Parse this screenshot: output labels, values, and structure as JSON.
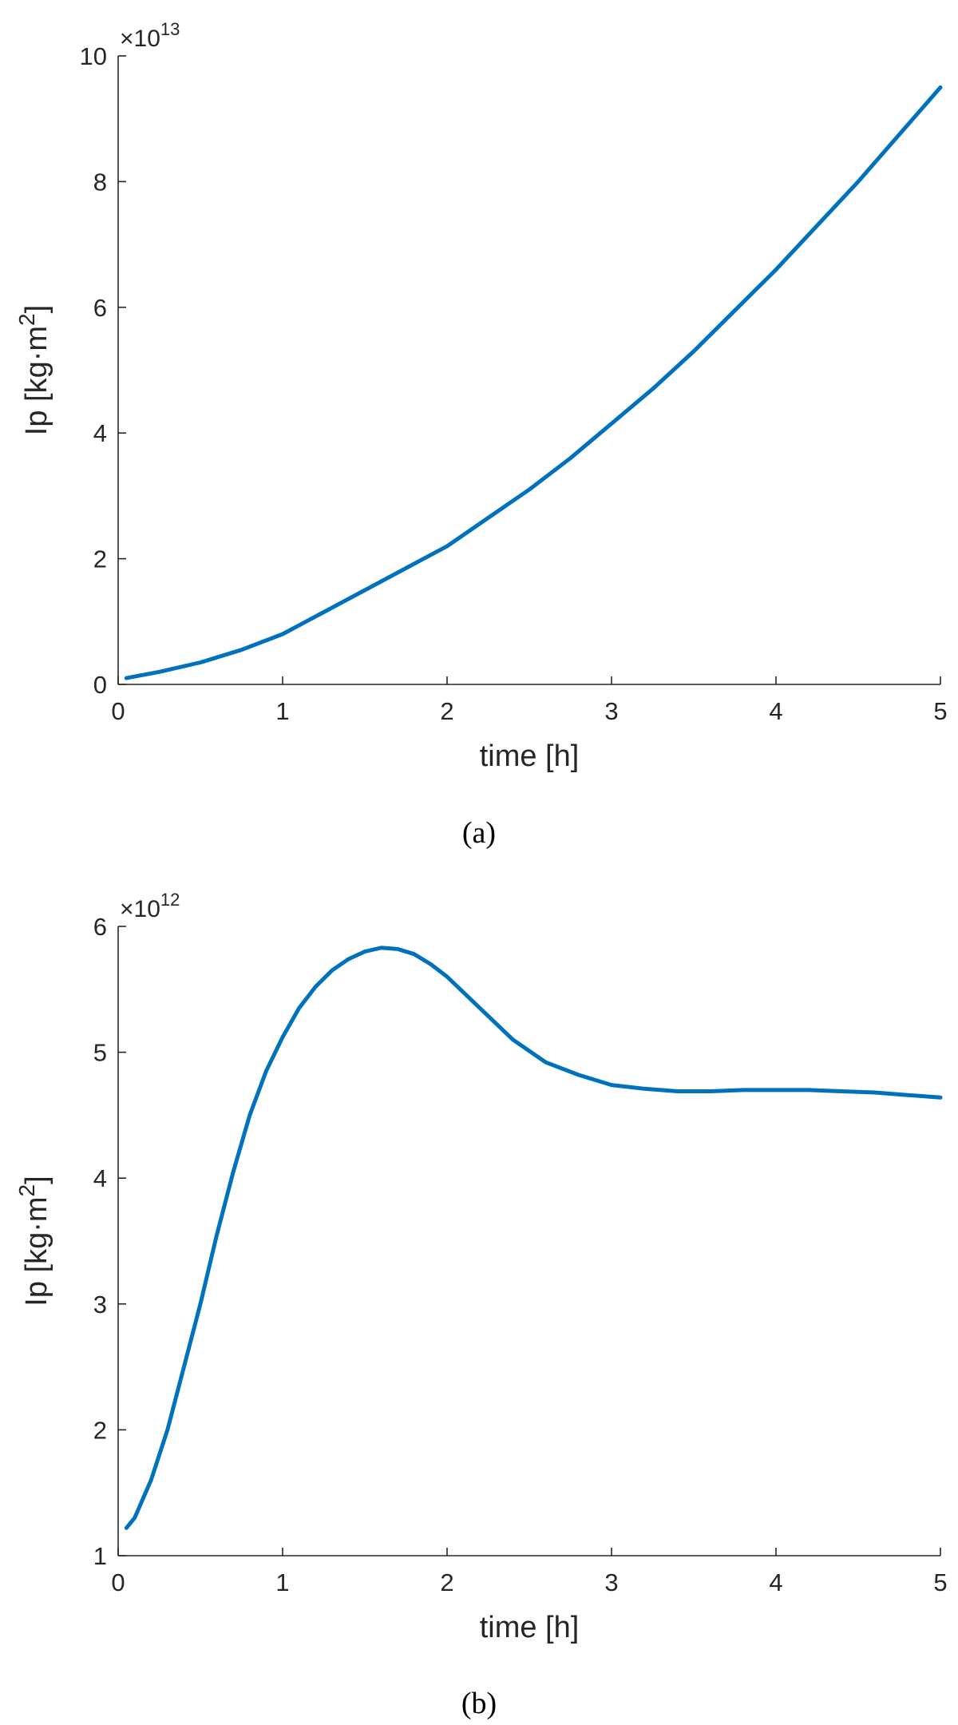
{
  "colors": {
    "series": "#0072BD",
    "axis": "#262626",
    "background": "#ffffff"
  },
  "chart_data": [
    {
      "type": "line",
      "panel_label": "(a)",
      "xlabel": "time [h]",
      "ylabel_main": "Ip [kg·m",
      "ylabel_sup": "2",
      "ylabel_close": "]",
      "exponent_base": "×10",
      "exponent_power": "13",
      "xlim": [
        0,
        5
      ],
      "ylim": [
        0,
        10
      ],
      "xticks": [
        0,
        1,
        2,
        3,
        4,
        5
      ],
      "yticks": [
        0,
        2,
        4,
        6,
        8,
        10
      ],
      "grid": false,
      "series": [
        {
          "x": [
            0.05,
            0.25,
            0.5,
            0.75,
            1.0,
            1.25,
            1.5,
            1.75,
            2.0,
            2.25,
            2.5,
            2.75,
            3.0,
            3.25,
            3.5,
            3.75,
            4.0,
            4.25,
            4.5,
            4.75,
            5.0
          ],
          "y": [
            0.1,
            0.2,
            0.35,
            0.55,
            0.8,
            1.15,
            1.5,
            1.85,
            2.2,
            2.65,
            3.1,
            3.6,
            4.15,
            4.7,
            5.3,
            5.95,
            6.6,
            7.3,
            8.0,
            8.75,
            9.5
          ]
        }
      ]
    },
    {
      "type": "line",
      "panel_label": "(b)",
      "xlabel": "time [h]",
      "ylabel_main": "Ip [kg·m",
      "ylabel_sup": "2",
      "ylabel_close": "]",
      "exponent_base": "×10",
      "exponent_power": "12",
      "xlim": [
        0,
        5
      ],
      "ylim": [
        1,
        6
      ],
      "xticks": [
        0,
        1,
        2,
        3,
        4,
        5
      ],
      "yticks": [
        1,
        2,
        3,
        4,
        5,
        6
      ],
      "grid": false,
      "series": [
        {
          "x": [
            0.05,
            0.1,
            0.2,
            0.3,
            0.4,
            0.5,
            0.6,
            0.7,
            0.8,
            0.9,
            1.0,
            1.1,
            1.2,
            1.3,
            1.4,
            1.5,
            1.6,
            1.7,
            1.8,
            1.9,
            2.0,
            2.2,
            2.4,
            2.6,
            2.8,
            3.0,
            3.2,
            3.4,
            3.6,
            3.8,
            4.0,
            4.2,
            4.4,
            4.6,
            4.8,
            5.0
          ],
          "y": [
            1.22,
            1.3,
            1.6,
            2.0,
            2.5,
            3.0,
            3.55,
            4.05,
            4.5,
            4.85,
            5.12,
            5.35,
            5.52,
            5.65,
            5.74,
            5.8,
            5.83,
            5.82,
            5.78,
            5.7,
            5.6,
            5.35,
            5.1,
            4.92,
            4.82,
            4.74,
            4.71,
            4.69,
            4.69,
            4.7,
            4.7,
            4.7,
            4.69,
            4.68,
            4.66,
            4.64
          ]
        }
      ]
    }
  ]
}
